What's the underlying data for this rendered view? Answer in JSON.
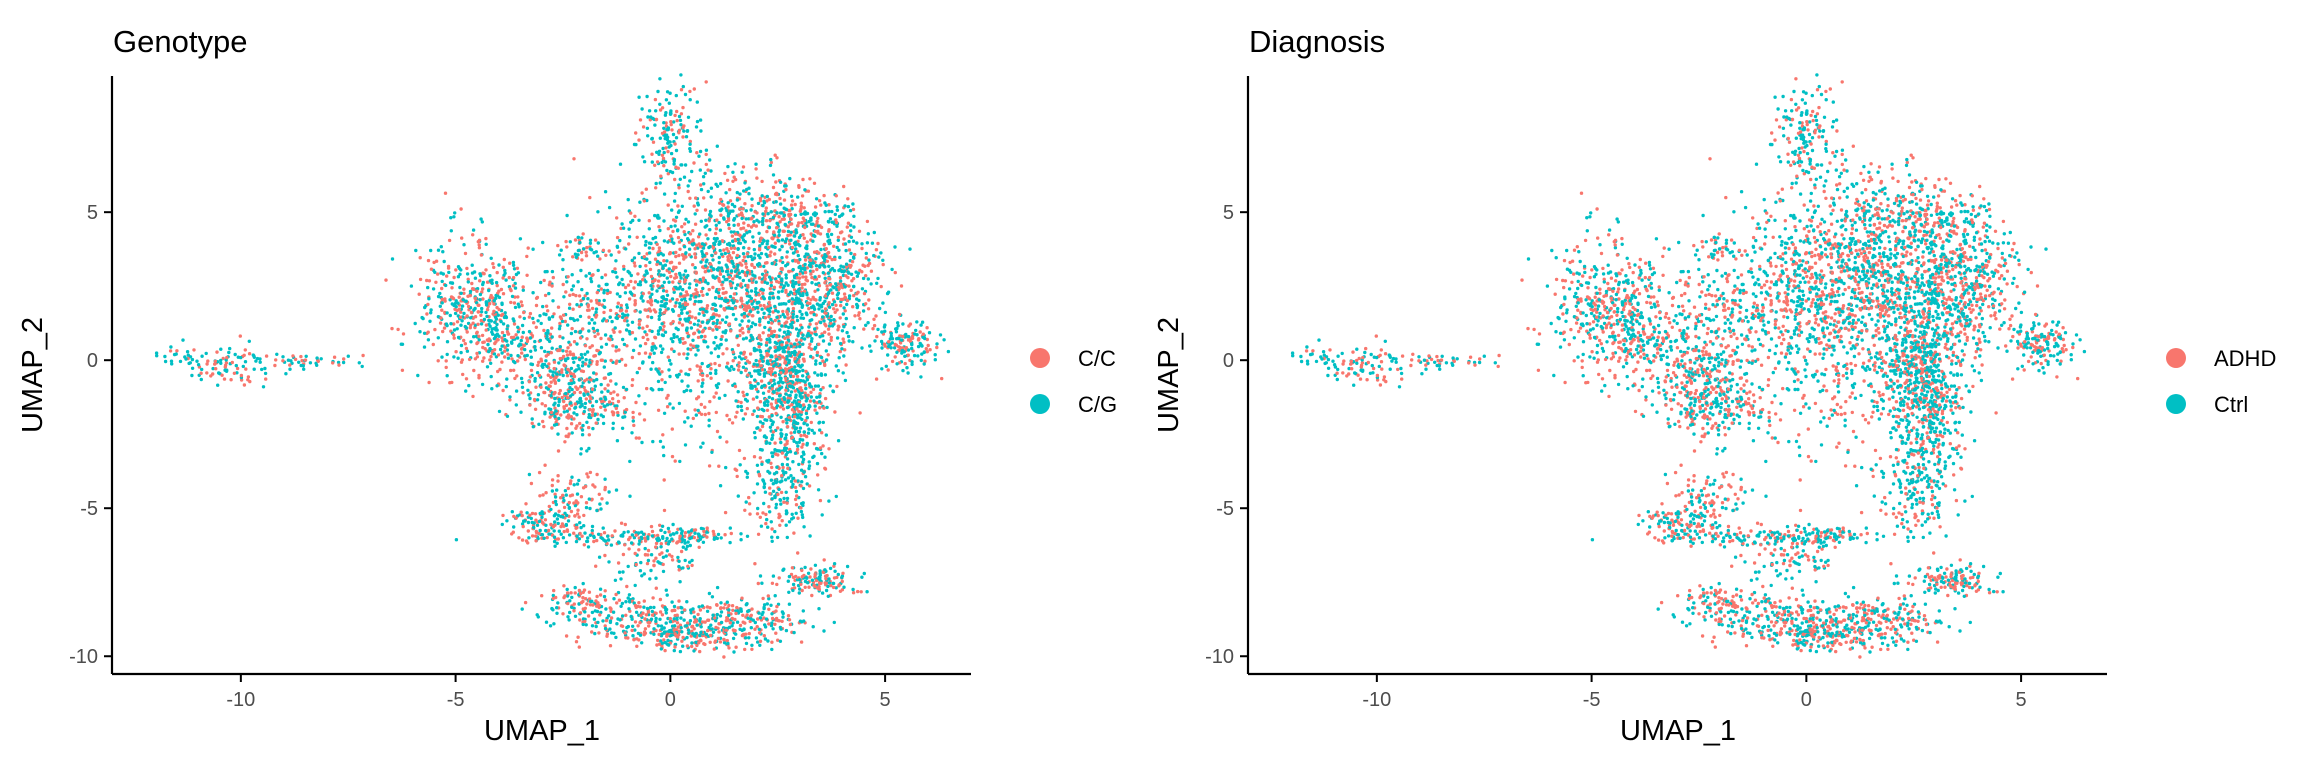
{
  "colors": {
    "c1": "#F8766D",
    "c2": "#00BFC4",
    "axis": "#000000",
    "tick_label": "#4D4D4D"
  },
  "chart_data": [
    {
      "type": "scatter",
      "title": "Genotype",
      "xlabel": "UMAP_1",
      "ylabel": "UMAP_2",
      "xlim": [
        -13.0,
        7.0
      ],
      "ylim": [
        -10.6,
        9.6
      ],
      "xticks": [
        -10,
        -5,
        0,
        5
      ],
      "yticks": [
        -10,
        -5,
        0,
        5
      ],
      "grid": false,
      "legend_position": "right",
      "series": [
        {
          "name": "C/C",
          "color": "#F8766D"
        },
        {
          "name": "C/G",
          "color": "#00BFC4"
        }
      ]
    },
    {
      "type": "scatter",
      "title": "Diagnosis",
      "xlabel": "UMAP_1",
      "ylabel": "UMAP_2",
      "xlim": [
        -13.0,
        7.0
      ],
      "ylim": [
        -10.6,
        9.6
      ],
      "xticks": [
        -10,
        -5,
        0,
        5
      ],
      "yticks": [
        -10,
        -5,
        0,
        5
      ],
      "grid": false,
      "legend_position": "right",
      "series": [
        {
          "name": "ADHD",
          "color": "#F8766D"
        },
        {
          "name": "Ctrl",
          "color": "#00BFC4"
        }
      ]
    }
  ]
}
